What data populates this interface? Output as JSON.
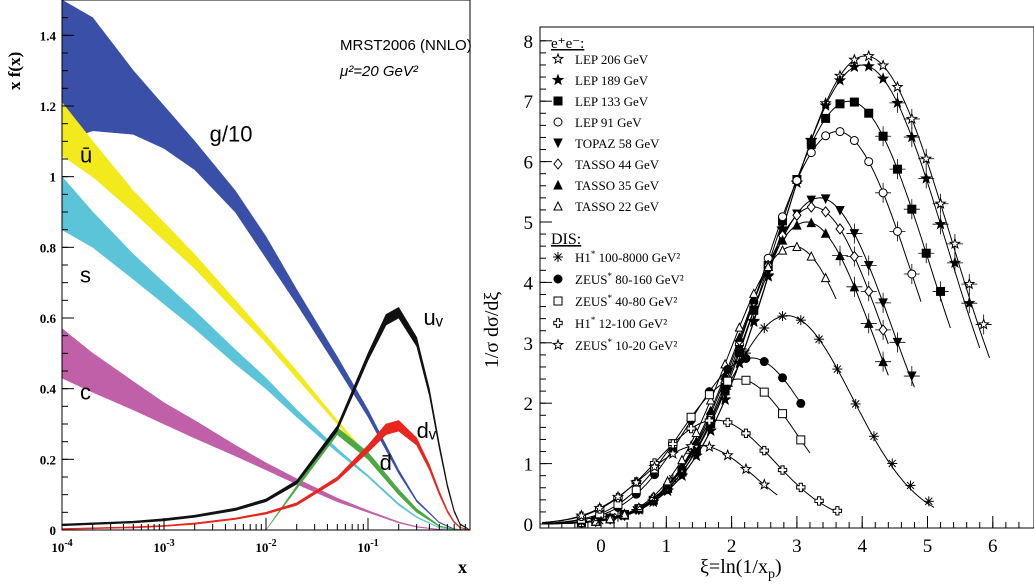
{
  "chart_data": [
    {
      "type": "area",
      "title": "MRST2006 (NNLO)",
      "subtitle": "μ²=20 GeV²",
      "ylabel": "x f(x)",
      "xlabel": "x",
      "xscale": "log",
      "xlim": [
        0.0001,
        1
      ],
      "ylim": [
        0,
        1.5
      ],
      "x_ticks": [
        {
          "value": 0.0001,
          "base": "10",
          "exp": "-4"
        },
        {
          "value": 0.001,
          "base": "10",
          "exp": "-3"
        },
        {
          "value": 0.01,
          "base": "10",
          "exp": "-2"
        },
        {
          "value": 0.1,
          "base": "10",
          "exp": "-1"
        }
      ],
      "y_ticks": [
        {
          "value": 0,
          "label": "0"
        },
        {
          "value": 0.2,
          "label": "0.2"
        },
        {
          "value": 0.4,
          "label": "0.4"
        },
        {
          "value": 0.6,
          "label": "0.6"
        },
        {
          "value": 0.8,
          "label": "0.8"
        },
        {
          "value": 1.0,
          "label": "1"
        },
        {
          "value": 1.2,
          "label": "1.2"
        },
        {
          "value": 1.4,
          "label": "1.4"
        }
      ],
      "grid": false,
      "series": [
        {
          "name": "g/10",
          "color": "#3a4fa8",
          "label_xy": [
            0.0028,
            1.1
          ],
          "x": [
            0.0001,
            0.0002,
            0.0005,
            0.001,
            0.002,
            0.005,
            0.01,
            0.02,
            0.05,
            0.1,
            0.2,
            0.3,
            0.5,
            0.7,
            1.0
          ],
          "lower": [
            1.1,
            1.13,
            1.12,
            1.08,
            1.02,
            0.9,
            0.77,
            0.64,
            0.46,
            0.32,
            0.16,
            0.08,
            0.02,
            0.002,
            0
          ],
          "upper": [
            1.5,
            1.45,
            1.3,
            1.2,
            1.1,
            0.96,
            0.83,
            0.68,
            0.49,
            0.34,
            0.17,
            0.085,
            0.022,
            0.003,
            0
          ]
        },
        {
          "name": "ū",
          "color": "#f2ea1c",
          "label_xy": [
            0.00015,
            1.04
          ],
          "x": [
            0.0001,
            0.0002,
            0.0005,
            0.001,
            0.002,
            0.005,
            0.01,
            0.02,
            0.05,
            0.1,
            0.2,
            0.3,
            0.5,
            0.7,
            1.0
          ],
          "lower": [
            1.06,
            1.0,
            0.9,
            0.82,
            0.74,
            0.62,
            0.53,
            0.43,
            0.3,
            0.2,
            0.1,
            0.05,
            0.01,
            0.001,
            0
          ],
          "upper": [
            1.21,
            1.1,
            0.96,
            0.87,
            0.78,
            0.65,
            0.55,
            0.45,
            0.31,
            0.21,
            0.105,
            0.053,
            0.012,
            0.002,
            0
          ]
        },
        {
          "name": "s",
          "color": "#5bc4d8",
          "label_xy": [
            0.00015,
            0.7
          ],
          "x": [
            0.0001,
            0.0002,
            0.0005,
            0.001,
            0.002,
            0.005,
            0.01,
            0.02,
            0.05,
            0.1,
            0.2,
            0.3,
            0.5,
            0.7,
            1.0
          ],
          "lower": [
            0.85,
            0.8,
            0.71,
            0.64,
            0.57,
            0.47,
            0.4,
            0.32,
            0.22,
            0.15,
            0.07,
            0.035,
            0.006,
            0.001,
            0
          ],
          "upper": [
            1.0,
            0.9,
            0.78,
            0.7,
            0.62,
            0.51,
            0.43,
            0.34,
            0.23,
            0.155,
            0.075,
            0.038,
            0.007,
            0.001,
            0
          ]
        },
        {
          "name": "c",
          "color": "#c060a8",
          "label_xy": [
            0.00015,
            0.37
          ],
          "x": [
            0.0001,
            0.0002,
            0.0005,
            0.001,
            0.002,
            0.005,
            0.01,
            0.02,
            0.05,
            0.1,
            0.2,
            0.3,
            0.5,
            0.7,
            1.0
          ],
          "lower": [
            0.43,
            0.39,
            0.34,
            0.3,
            0.26,
            0.21,
            0.17,
            0.13,
            0.08,
            0.05,
            0.02,
            0.008,
            0.001,
            0,
            0
          ],
          "upper": [
            0.57,
            0.5,
            0.42,
            0.36,
            0.31,
            0.24,
            0.19,
            0.145,
            0.09,
            0.055,
            0.023,
            0.01,
            0.002,
            0,
            0
          ]
        },
        {
          "name": "d̄",
          "color": "#4ba845",
          "x": [
            0.0001,
            0.001,
            0.01,
            0.05,
            0.1,
            0.2,
            0.3,
            0.5,
            0.7,
            1.0
          ],
          "lower": [
            0.0,
            0.0,
            0.0,
            0.27,
            0.2,
            0.1,
            0.05,
            0.01,
            0.001,
            0
          ],
          "upper": [
            0.0,
            0.0,
            0.0,
            0.29,
            0.22,
            0.115,
            0.06,
            0.012,
            0.002,
            0
          ],
          "label": "d̄",
          "label_xy": [
            0.13,
            0.17
          ]
        },
        {
          "name": "dᵥ",
          "color": "#e8251f",
          "label_xy": [
            0.3,
            0.26
          ],
          "x": [
            0.0001,
            0.0005,
            0.001,
            0.002,
            0.005,
            0.01,
            0.02,
            0.05,
            0.1,
            0.15,
            0.2,
            0.3,
            0.4,
            0.5,
            0.6,
            0.7,
            0.8,
            1.0
          ],
          "lower": [
            0.002,
            0.006,
            0.01,
            0.016,
            0.03,
            0.045,
            0.07,
            0.14,
            0.22,
            0.27,
            0.28,
            0.24,
            0.17,
            0.1,
            0.05,
            0.02,
            0.006,
            0
          ],
          "upper": [
            0.004,
            0.009,
            0.013,
            0.02,
            0.034,
            0.05,
            0.077,
            0.15,
            0.24,
            0.3,
            0.31,
            0.26,
            0.185,
            0.11,
            0.056,
            0.024,
            0.008,
            0
          ]
        },
        {
          "name": "uᵥ",
          "color": "#111111",
          "label_xy": [
            0.35,
            0.58
          ],
          "x": [
            0.0001,
            0.0005,
            0.001,
            0.002,
            0.005,
            0.01,
            0.02,
            0.05,
            0.1,
            0.15,
            0.2,
            0.3,
            0.4,
            0.5,
            0.6,
            0.7,
            0.8,
            1.0
          ],
          "lower": [
            0.012,
            0.02,
            0.026,
            0.036,
            0.055,
            0.08,
            0.13,
            0.28,
            0.48,
            0.58,
            0.6,
            0.52,
            0.38,
            0.23,
            0.12,
            0.05,
            0.015,
            0
          ],
          "upper": [
            0.017,
            0.025,
            0.032,
            0.042,
            0.062,
            0.088,
            0.14,
            0.295,
            0.5,
            0.61,
            0.63,
            0.545,
            0.4,
            0.245,
            0.13,
            0.056,
            0.018,
            0
          ]
        }
      ]
    },
    {
      "type": "scatter",
      "xlabel": "ξ=ln(1/x",
      "xlabel_sub": "p",
      "xlabel_close": ")",
      "ylabel": "1/σ dσ/dξ",
      "xlim": [
        -1,
        6.6
      ],
      "ylim": [
        0,
        8.2
      ],
      "x_ticks": [
        0,
        1,
        2,
        3,
        4,
        5,
        6
      ],
      "y_ticks": [
        0,
        1,
        2,
        3,
        4,
        5,
        6,
        7,
        8
      ],
      "grid": false,
      "legend_placement": "top-left",
      "legend_ee_header": "e⁺e⁻:",
      "legend_dis_header": "DIS:",
      "series": [
        {
          "name": "LEP 206 GeV",
          "group": "ee",
          "marker": "star-open",
          "peak": 7.75,
          "mu": 4.05,
          "sigma": 1.32,
          "xmax": 6.55,
          "fit": true
        },
        {
          "name": "LEP 189 GeV",
          "group": "ee",
          "marker": "star",
          "peak": 7.6,
          "mu": 4.0,
          "sigma": 1.3,
          "xmax": 6.4,
          "fit": true
        },
        {
          "name": "LEP 133 GeV",
          "group": "ee",
          "marker": "square",
          "peak": 7.0,
          "mu": 3.8,
          "sigma": 1.25,
          "xmax": 5.95,
          "fit": true
        },
        {
          "name": "LEP 91 GeV",
          "group": "ee",
          "marker": "circle-open",
          "peak": 6.5,
          "mu": 3.62,
          "sigma": 1.2,
          "xmax": 5.5,
          "fit": true
        },
        {
          "name": "TOPAZ 58 GeV",
          "group": "ee",
          "marker": "tri-down",
          "peak": 5.4,
          "mu": 3.35,
          "sigma": 1.1,
          "xmax": 5.4,
          "fit": true
        },
        {
          "name": "TASSO 44 GeV",
          "group": "ee",
          "marker": "diamond-open",
          "peak": 5.25,
          "mu": 3.25,
          "sigma": 1.08,
          "xmax": 5.0,
          "fit": true
        },
        {
          "name": "TASSO 35 GeV",
          "group": "ee",
          "marker": "tri-up",
          "peak": 5.0,
          "mu": 3.15,
          "sigma": 1.05,
          "xmax": 5.0,
          "fit": true
        },
        {
          "name": "TASSO 22 GeV",
          "group": "ee",
          "marker": "tri-up-open",
          "peak": 4.6,
          "mu": 2.95,
          "sigma": 1.0,
          "xmax": 4.2,
          "fit": true
        },
        {
          "name": "H1",
          "sup": "*",
          "range": "100-8000 GeV²",
          "group": "dis",
          "marker": "asterisk",
          "peak": 3.45,
          "mu": 2.85,
          "sigma": 1.0,
          "xmax": 5.7,
          "fit": true
        },
        {
          "name": "ZEUS",
          "sup": "*",
          "range": "80-160 GeV²",
          "group": "dis",
          "marker": "circle",
          "peak": 2.75,
          "mu": 2.3,
          "sigma": 0.95,
          "xmax": 3.7,
          "fit": true
        },
        {
          "name": "ZEUS",
          "sup": "*",
          "range": "40-80 GeV²",
          "group": "dis",
          "marker": "square-open",
          "peak": 2.4,
          "mu": 2.1,
          "sigma": 0.92,
          "xmax": 3.8,
          "fit": true
        },
        {
          "name": "H1",
          "sup": "*",
          "range": "12-100 GeV²",
          "group": "dis",
          "marker": "cross-open",
          "peak": 1.72,
          "mu": 1.75,
          "sigma": 0.9,
          "xmax": 4.2,
          "fit": true
        },
        {
          "name": "ZEUS",
          "sup": "*",
          "range": "10-20 GeV²",
          "group": "dis",
          "marker": "star-open",
          "peak": 1.3,
          "mu": 1.5,
          "sigma": 0.85,
          "xmax": 3.3,
          "fit": true
        }
      ]
    }
  ]
}
